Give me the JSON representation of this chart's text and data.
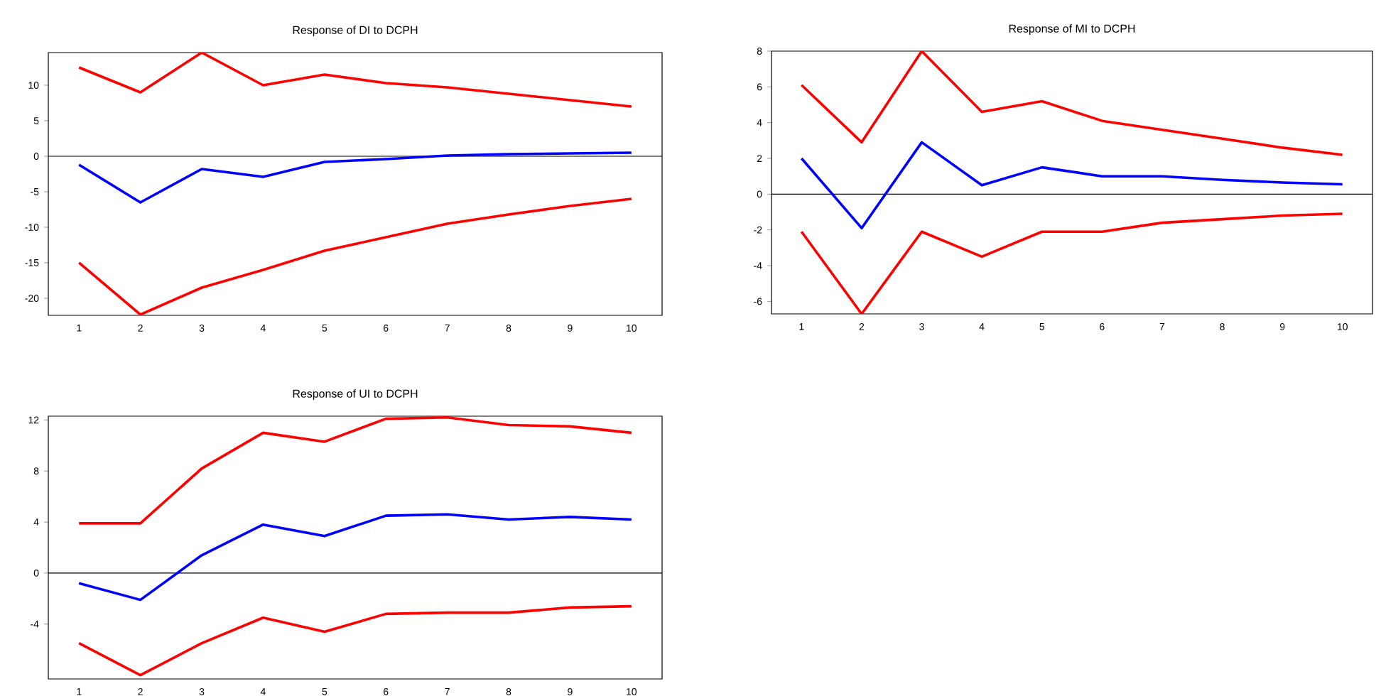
{
  "chart_data": [
    {
      "type": "line",
      "title": "Response of DI to DCPH",
      "x": [
        1,
        2,
        3,
        4,
        5,
        6,
        7,
        8,
        9,
        10
      ],
      "xlim": [
        0.5,
        10.5
      ],
      "xticks": [
        1,
        2,
        3,
        4,
        5,
        6,
        7,
        8,
        9,
        10
      ],
      "ylim": [
        -22.4,
        14.6
      ],
      "yticks": [
        -20,
        -15,
        -10,
        -5,
        0,
        5,
        10
      ],
      "grid": false,
      "line_style": "solid",
      "marker": "none",
      "ref_lines": [
        {
          "axis": "y",
          "value": 0,
          "color": "#000000"
        }
      ],
      "series": [
        {
          "color": "#ff0000",
          "values": [
            12.5,
            9,
            14.6,
            10,
            11.5,
            10.3,
            9.7,
            8.8,
            7.9,
            7.0
          ]
        },
        {
          "color": "#0000ff",
          "values": [
            -1.2,
            -6.5,
            -1.8,
            -2.9,
            -0.8,
            -0.4,
            0.1,
            0.3,
            0.4,
            0.5
          ]
        },
        {
          "color": "#ff0000",
          "values": [
            -15,
            -22.3,
            -18.5,
            -16,
            -13.3,
            -11.4,
            -9.5,
            -8.2,
            -7.0,
            -6.0
          ]
        }
      ]
    },
    {
      "type": "line",
      "title": "Response of MI to DCPH",
      "x": [
        1,
        2,
        3,
        4,
        5,
        6,
        7,
        8,
        9,
        10
      ],
      "xlim": [
        0.5,
        10.5
      ],
      "xticks": [
        1,
        2,
        3,
        4,
        5,
        6,
        7,
        8,
        9,
        10
      ],
      "ylim": [
        -6.7,
        8
      ],
      "yticks": [
        -6,
        -4,
        -2,
        0,
        2,
        4,
        6,
        8
      ],
      "grid": false,
      "line_style": "solid",
      "marker": "none",
      "ref_lines": [
        {
          "axis": "y",
          "value": 0,
          "color": "#000000"
        }
      ],
      "series": [
        {
          "color": "#ff0000",
          "values": [
            6.1,
            2.9,
            8.0,
            4.6,
            5.2,
            4.1,
            3.6,
            3.1,
            2.6,
            2.2
          ]
        },
        {
          "color": "#0000ff",
          "values": [
            2.0,
            -1.9,
            2.9,
            0.5,
            1.5,
            1.0,
            1.0,
            0.8,
            0.65,
            0.55
          ]
        },
        {
          "color": "#ff0000",
          "values": [
            -2.1,
            -6.7,
            -2.1,
            -3.5,
            -2.1,
            -2.1,
            -1.6,
            -1.4,
            -1.2,
            -1.1
          ]
        }
      ]
    },
    {
      "type": "line",
      "title": "Response of UI to DCPH",
      "x": [
        1,
        2,
        3,
        4,
        5,
        6,
        7,
        8,
        9,
        10
      ],
      "xlim": [
        0.5,
        10.5
      ],
      "xticks": [
        1,
        2,
        3,
        4,
        5,
        6,
        7,
        8,
        9,
        10
      ],
      "ylim": [
        -8.3,
        12.3
      ],
      "yticks": [
        -4,
        0,
        4,
        8,
        12
      ],
      "grid": false,
      "line_style": "solid",
      "marker": "none",
      "ref_lines": [
        {
          "axis": "y",
          "value": 0,
          "color": "#000000"
        }
      ],
      "series": [
        {
          "color": "#ff0000",
          "values": [
            3.9,
            3.9,
            8.2,
            11.0,
            10.3,
            12.1,
            12.2,
            11.6,
            11.5,
            11.0
          ]
        },
        {
          "color": "#0000ff",
          "values": [
            -0.8,
            -2.1,
            1.4,
            3.8,
            2.9,
            4.5,
            4.6,
            4.2,
            4.4,
            4.2
          ]
        },
        {
          "color": "#ff0000",
          "values": [
            -5.5,
            -8.0,
            -5.5,
            -3.5,
            -4.6,
            -3.2,
            -3.1,
            -3.1,
            -2.7,
            -2.6
          ]
        }
      ]
    }
  ]
}
